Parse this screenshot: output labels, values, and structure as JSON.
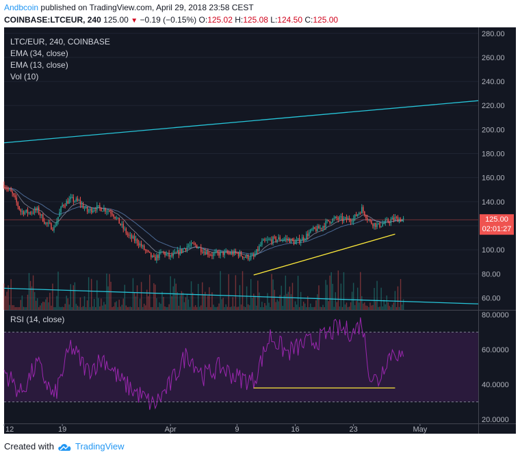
{
  "header": {
    "author": "Andbcoin",
    "published": "published on TradingView.com, April 29, 2018 23:58 CEST",
    "symbol": "COINBASE:LTCEUR, 240",
    "last": "125.00",
    "change": "−0.19 (−0.15%)",
    "o_label": "O:",
    "o": "125.02",
    "h_label": "H:",
    "h": "125.08",
    "l_label": "L:",
    "l": "124.50",
    "c_label": "C:",
    "c": "125.00"
  },
  "legend": {
    "line1": "LTC/EUR, 240, COINBASE",
    "line2": "EMA (34, close)",
    "line3": "EMA (13, close)",
    "line4": "Vol (10)"
  },
  "price_tag": {
    "value": "125.00",
    "countdown": "02:01:27"
  },
  "rsi_label": "RSI (14, close)",
  "footer": {
    "created_with": "Created with",
    "brand": "TradingView"
  },
  "colors": {
    "background": "#131722",
    "up": "#26a69a",
    "down": "#ef5350",
    "trendline_cyan": "#27c6da",
    "trendline_yellow": "#ffeb3b",
    "rsi_line": "#9c27b0",
    "rsi_band": "#2a1a3c",
    "price_tag": "#ef5350"
  },
  "chart_data": [
    {
      "type": "candlestick",
      "title": "LTC/EUR, 240, COINBASE",
      "y_axis": {
        "ticks": [
          "280.00",
          "260.00",
          "240.00",
          "220.00",
          "200.00",
          "180.00",
          "160.00",
          "140.00",
          "120.00",
          "100.00",
          "80.00",
          "60.00"
        ],
        "ylim": [
          50,
          285
        ]
      },
      "x_axis": {
        "ticks": [
          "12",
          "19",
          "Apr",
          "9",
          "16",
          "23",
          "May"
        ]
      },
      "x_range": [
        "2018-03-12",
        "2018-05-08"
      ],
      "last_price": 125.0,
      "series": [
        {
          "name": "price_approx",
          "points": [
            [
              "2018-03-12",
              154
            ],
            [
              "2018-03-13",
              146
            ],
            [
              "2018-03-14",
              132
            ],
            [
              "2018-03-15",
              131
            ],
            [
              "2018-03-16",
              133
            ],
            [
              "2018-03-17",
              122
            ],
            [
              "2018-03-18",
              118
            ],
            [
              "2018-03-19",
              137
            ],
            [
              "2018-03-20",
              142
            ],
            [
              "2018-03-21",
              140
            ],
            [
              "2018-03-22",
              132
            ],
            [
              "2018-03-23",
              135
            ],
            [
              "2018-03-24",
              134
            ],
            [
              "2018-03-25",
              131
            ],
            [
              "2018-03-26",
              121
            ],
            [
              "2018-03-27",
              111
            ],
            [
              "2018-03-28",
              107
            ],
            [
              "2018-03-29",
              99
            ],
            [
              "2018-03-30",
              92
            ],
            [
              "2018-03-31",
              98
            ],
            [
              "2018-04-01",
              94
            ],
            [
              "2018-04-02",
              98
            ],
            [
              "2018-04-03",
              103
            ],
            [
              "2018-04-04",
              104
            ],
            [
              "2018-04-05",
              99
            ],
            [
              "2018-04-06",
              96
            ],
            [
              "2018-04-07",
              97
            ],
            [
              "2018-04-08",
              97
            ],
            [
              "2018-04-09",
              97
            ],
            [
              "2018-04-10",
              94
            ],
            [
              "2018-04-11",
              94
            ],
            [
              "2018-04-12",
              106
            ],
            [
              "2018-04-13",
              108
            ],
            [
              "2018-04-14",
              109
            ],
            [
              "2018-04-15",
              109
            ],
            [
              "2018-04-16",
              106
            ],
            [
              "2018-04-17",
              110
            ],
            [
              "2018-04-18",
              116
            ],
            [
              "2018-04-19",
              118
            ],
            [
              "2018-04-20",
              124
            ],
            [
              "2018-04-21",
              126
            ],
            [
              "2018-04-22",
              125
            ],
            [
              "2018-04-23",
              126
            ],
            [
              "2018-04-24",
              134
            ],
            [
              "2018-04-25",
              123
            ],
            [
              "2018-04-26",
              120
            ],
            [
              "2018-04-27",
              123
            ],
            [
              "2018-04-28",
              126
            ],
            [
              "2018-04-29",
              125
            ]
          ]
        }
      ],
      "trendlines": [
        {
          "color": "cyan",
          "from": [
            "2018-03-12",
            189
          ],
          "to": [
            "2018-05-08",
            224
          ]
        },
        {
          "color": "cyan",
          "from": [
            "2018-03-12",
            68
          ],
          "to": [
            "2018-05-08",
            55
          ]
        },
        {
          "color": "yellow",
          "from": [
            "2018-04-11",
            79
          ],
          "to": [
            "2018-04-28",
            113
          ]
        }
      ],
      "ema": [
        {
          "name": "EMA (34, close)"
        },
        {
          "name": "EMA (13, close)"
        }
      ],
      "volume": {
        "name": "Vol (10)"
      }
    },
    {
      "type": "line",
      "title": "RSI (14, close)",
      "y_axis": {
        "ticks": [
          "80.0000",
          "60.0000",
          "40.0000",
          "20.0000"
        ],
        "ylim": [
          20,
          80
        ]
      },
      "bands": [
        70,
        30
      ],
      "trendlines": [
        {
          "color": "yellow",
          "from": [
            "2018-04-11",
            38
          ],
          "to": [
            "2018-04-28",
            38
          ]
        }
      ],
      "series": [
        {
          "name": "rsi_approx",
          "points": [
            [
              "2018-03-12",
              48
            ],
            [
              "2018-03-14",
              35
            ],
            [
              "2018-03-16",
              52
            ],
            [
              "2018-03-18",
              32
            ],
            [
              "2018-03-20",
              62
            ],
            [
              "2018-03-22",
              48
            ],
            [
              "2018-03-24",
              55
            ],
            [
              "2018-03-26",
              42
            ],
            [
              "2018-03-28",
              35
            ],
            [
              "2018-03-30",
              28
            ],
            [
              "2018-04-01",
              40
            ],
            [
              "2018-04-03",
              58
            ],
            [
              "2018-04-05",
              45
            ],
            [
              "2018-04-07",
              50
            ],
            [
              "2018-04-09",
              44
            ],
            [
              "2018-04-11",
              42
            ],
            [
              "2018-04-13",
              68
            ],
            [
              "2018-04-15",
              58
            ],
            [
              "2018-04-17",
              63
            ],
            [
              "2018-04-19",
              66
            ],
            [
              "2018-04-21",
              72
            ],
            [
              "2018-04-23",
              70
            ],
            [
              "2018-04-24",
              76
            ],
            [
              "2018-04-25",
              45
            ],
            [
              "2018-04-26",
              42
            ],
            [
              "2018-04-27",
              55
            ],
            [
              "2018-04-28",
              60
            ],
            [
              "2018-04-29",
              53
            ]
          ]
        }
      ]
    }
  ]
}
